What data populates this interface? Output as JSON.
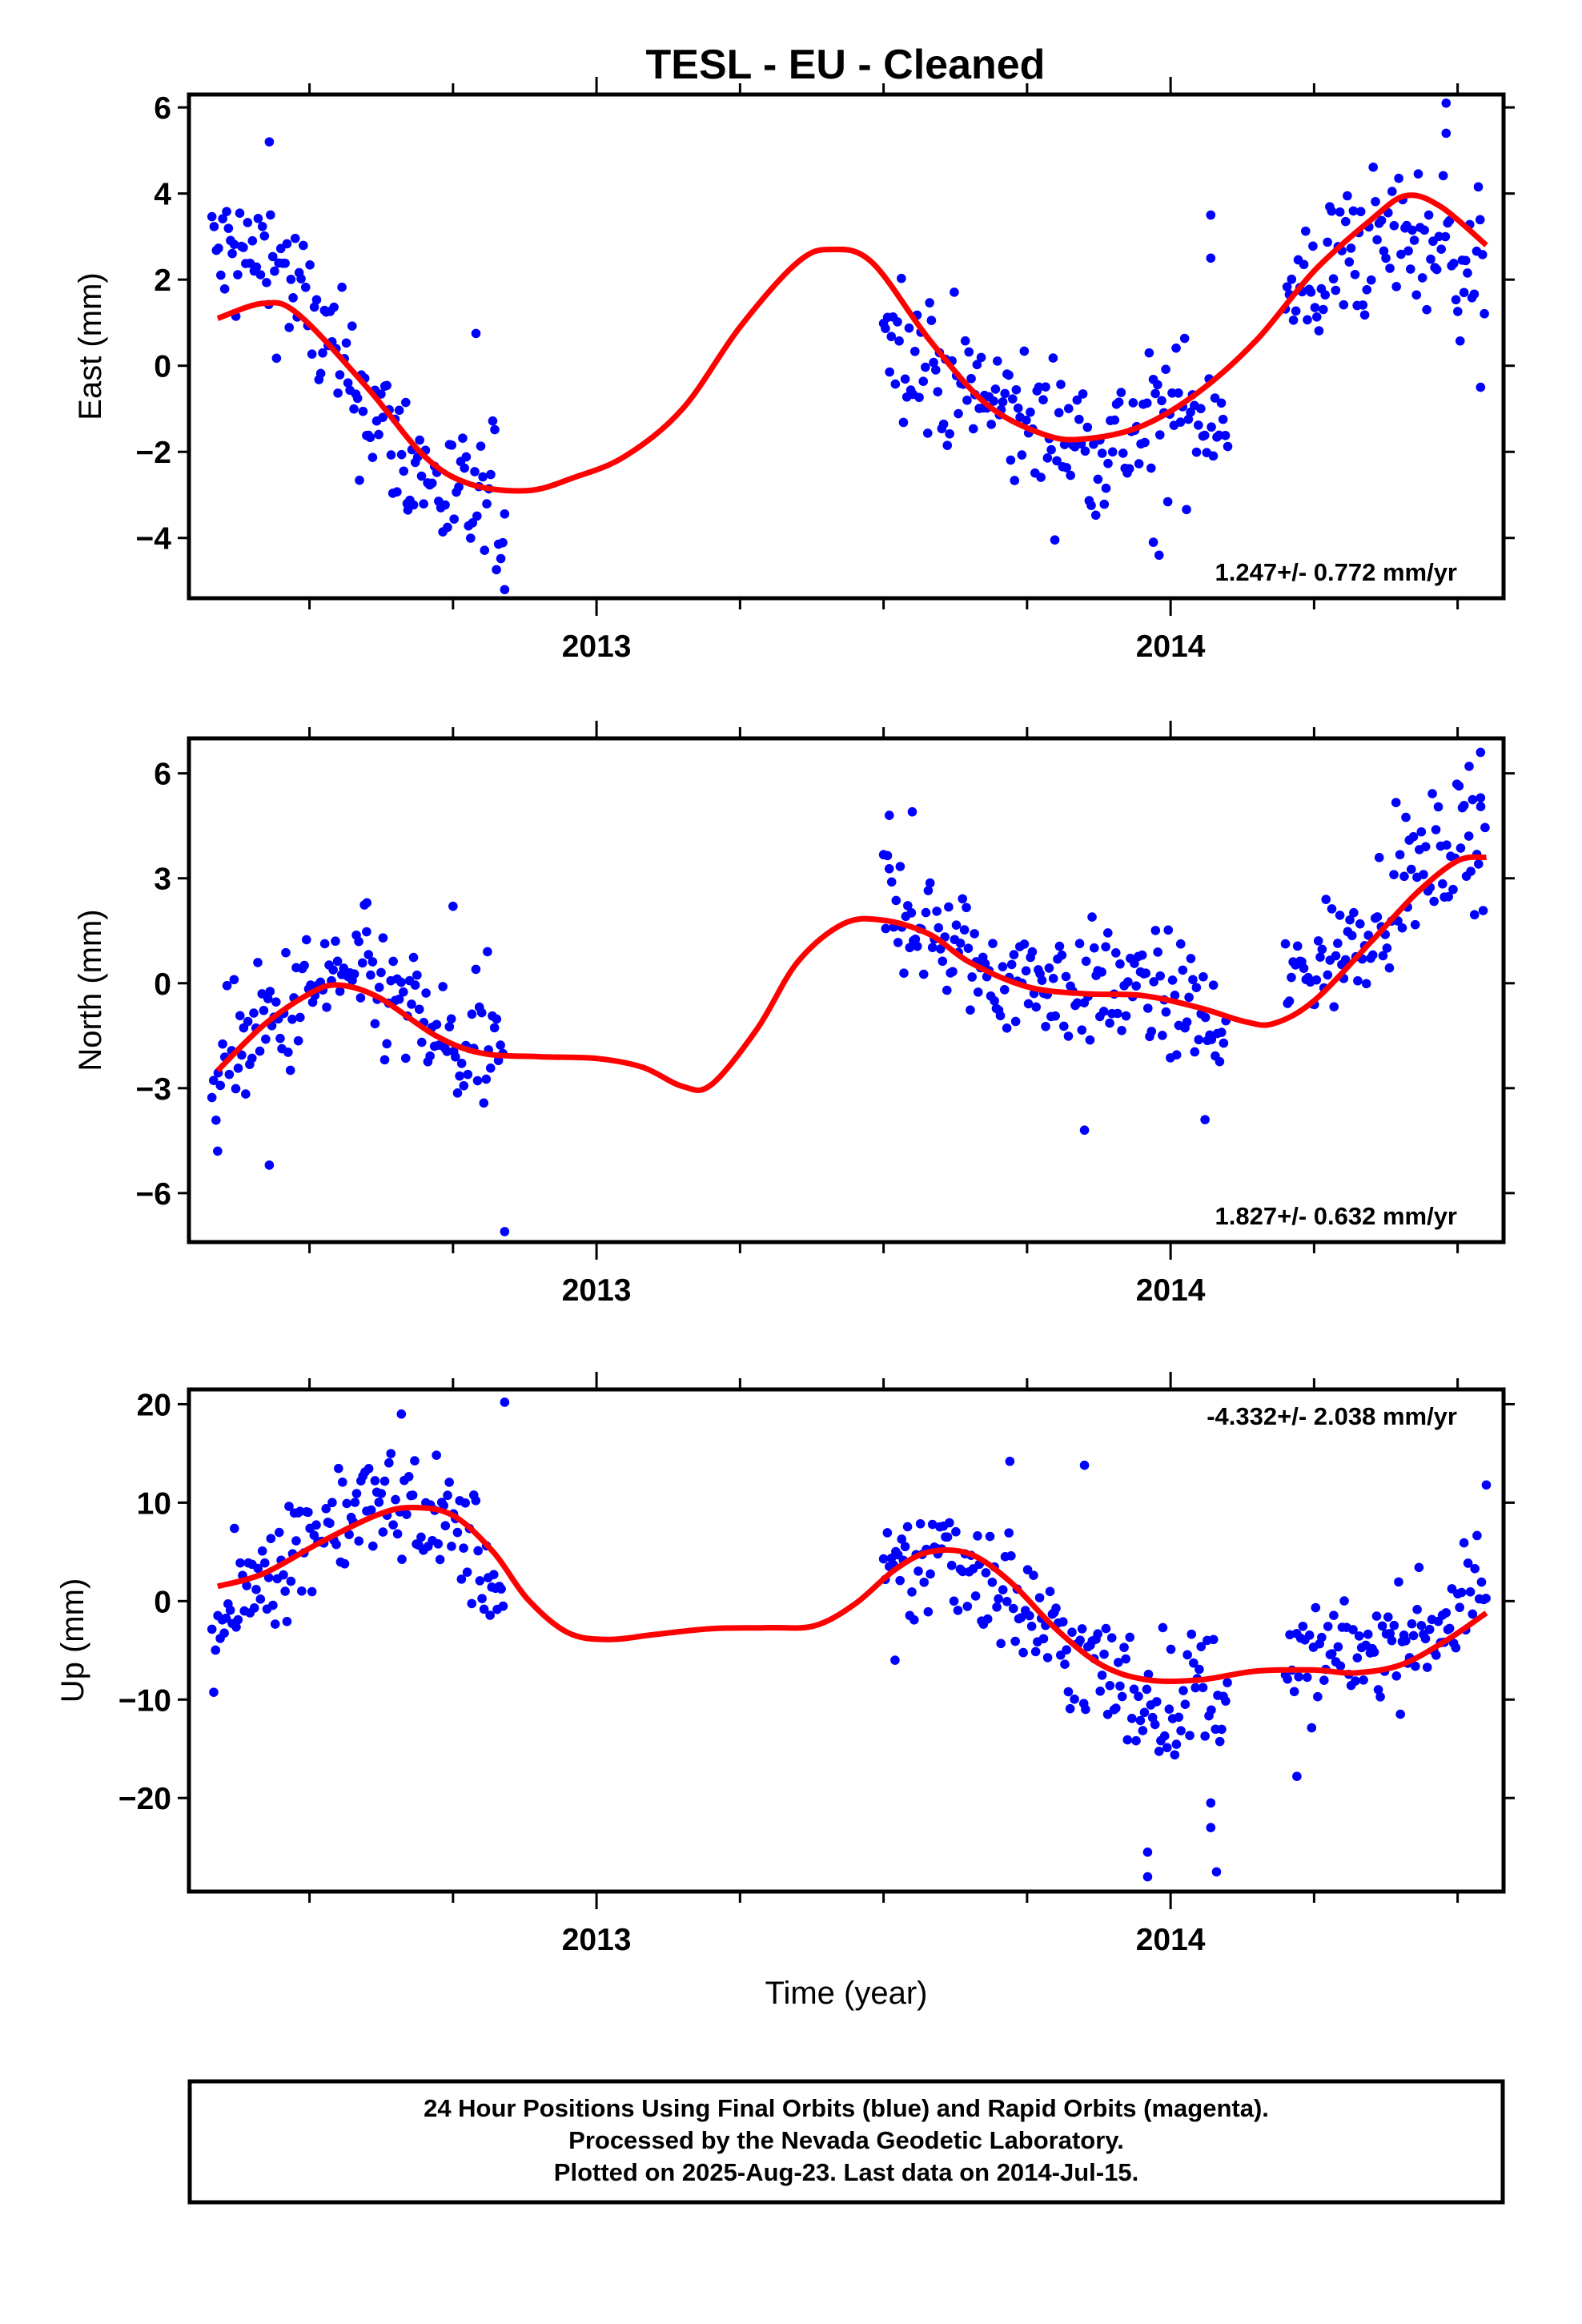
{
  "chart_data": [
    {
      "type": "scatter",
      "title": "TESL  - EU - Cleaned",
      "ylabel": "East (mm)",
      "xlabel": "",
      "xlim": [
        2012.29,
        2014.58
      ],
      "ylim": [
        -5.4,
        6.3
      ],
      "yticks": [
        -4,
        -2,
        0,
        2,
        4,
        6
      ],
      "xtick_labels": [
        {
          "x": 2013,
          "label": "2013"
        },
        {
          "x": 2014,
          "label": "2014"
        }
      ],
      "rate_label": "1.247+/- 0.772 mm/yr",
      "rate_position": "bottom-right",
      "series": [
        {
          "kind": "points",
          "color": "#0000ff",
          "segments": [
            {
              "x_start": 2012.33,
              "x_end": 2012.84,
              "trend": [
                [
                  2012.33,
                  2.6
                ],
                [
                  2012.45,
                  2.4
                ],
                [
                  2012.55,
                  0.0
                ],
                [
                  2012.65,
                  -1.8
                ],
                [
                  2012.75,
                  -3.2
                ],
                [
                  2012.84,
                  -3.3
                ]
              ],
              "spread": 1.0
            },
            {
              "x_start": 2013.5,
              "x_end": 2014.1,
              "trend": [
                [
                  2013.5,
                  1.0
                ],
                [
                  2013.6,
                  -0.2
                ],
                [
                  2013.7,
                  -1.0
                ],
                [
                  2013.8,
                  -1.6
                ],
                [
                  2013.9,
                  -1.8
                ],
                [
                  2014.0,
                  -1.2
                ],
                [
                  2014.1,
                  -0.9
                ]
              ],
              "spread": 1.0
            },
            {
              "x_start": 2014.2,
              "x_end": 2014.55,
              "trend": [
                [
                  2014.2,
                  1.2
                ],
                [
                  2014.3,
                  2.6
                ],
                [
                  2014.4,
                  3.0
                ],
                [
                  2014.48,
                  2.8
                ],
                [
                  2014.55,
                  2.0
                ]
              ],
              "spread": 1.0
            }
          ],
          "outliers": [
            [
              2012.43,
              5.2
            ],
            [
              2012.79,
              0.75
            ],
            [
              2013.97,
              -4.1
            ],
            [
              2013.98,
              -4.4
            ],
            [
              2014.07,
              3.5
            ],
            [
              2014.07,
              2.5
            ],
            [
              2014.48,
              6.1
            ],
            [
              2014.48,
              5.4
            ],
            [
              2014.54,
              -0.5
            ],
            [
              2012.84,
              -5.2
            ],
            [
              2012.67,
              -3.2
            ]
          ]
        },
        {
          "kind": "fit",
          "color": "#ff0000",
          "points": [
            [
              2012.34,
              1.1
            ],
            [
              2012.42,
              1.45
            ],
            [
              2012.48,
              1.2
            ],
            [
              2012.6,
              -0.5
            ],
            [
              2012.7,
              -2.1
            ],
            [
              2012.78,
              -2.75
            ],
            [
              2012.88,
              -2.9
            ],
            [
              2012.96,
              -2.6
            ],
            [
              2013.05,
              -2.1
            ],
            [
              2013.15,
              -1.0
            ],
            [
              2013.25,
              0.9
            ],
            [
              2013.35,
              2.4
            ],
            [
              2013.41,
              2.7
            ],
            [
              2013.48,
              2.4
            ],
            [
              2013.58,
              0.6
            ],
            [
              2013.68,
              -0.9
            ],
            [
              2013.78,
              -1.6
            ],
            [
              2013.85,
              -1.7
            ],
            [
              2013.95,
              -1.4
            ],
            [
              2014.05,
              -0.6
            ],
            [
              2014.15,
              0.6
            ],
            [
              2014.25,
              2.2
            ],
            [
              2014.35,
              3.4
            ],
            [
              2014.41,
              3.95
            ],
            [
              2014.47,
              3.7
            ],
            [
              2014.55,
              2.8
            ]
          ]
        }
      ]
    },
    {
      "type": "scatter",
      "title": "",
      "ylabel": "North (mm)",
      "xlabel": "",
      "xlim": [
        2012.29,
        2014.58
      ],
      "ylim": [
        -7.4,
        7.0
      ],
      "yticks": [
        -6,
        -3,
        0,
        3,
        6
      ],
      "xtick_labels": [
        {
          "x": 2013,
          "label": "2013"
        },
        {
          "x": 2014,
          "label": "2014"
        }
      ],
      "rate_label": "1.827+/- 0.632 mm/yr",
      "rate_position": "bottom-right",
      "series": [
        {
          "kind": "points",
          "color": "#0000ff",
          "segments": [
            {
              "x_start": 2012.33,
              "x_end": 2012.84,
              "trend": [
                [
                  2012.33,
                  -2.3
                ],
                [
                  2012.45,
                  -1.0
                ],
                [
                  2012.55,
                  0.3
                ],
                [
                  2012.65,
                  -0.5
                ],
                [
                  2012.75,
                  -2.0
                ],
                [
                  2012.84,
                  -2.3
                ]
              ],
              "spread": 1.1
            },
            {
              "x_start": 2013.5,
              "x_end": 2014.1,
              "trend": [
                [
                  2013.5,
                  2.5
                ],
                [
                  2013.58,
                  1.5
                ],
                [
                  2013.68,
                  0.3
                ],
                [
                  2013.8,
                  0.0
                ],
                [
                  2013.95,
                  -0.2
                ],
                [
                  2014.05,
                  -0.7
                ],
                [
                  2014.1,
                  -2.2
                ]
              ],
              "spread": 1.0
            },
            {
              "x_start": 2014.2,
              "x_end": 2014.55,
              "trend": [
                [
                  2014.2,
                  0.0
                ],
                [
                  2014.3,
                  1.0
                ],
                [
                  2014.4,
                  2.8
                ],
                [
                  2014.48,
                  3.8
                ],
                [
                  2014.55,
                  4.2
                ]
              ],
              "spread": 1.0
            }
          ],
          "outliers": [
            [
              2012.84,
              -7.1
            ],
            [
              2012.34,
              -4.8
            ],
            [
              2012.43,
              -5.2
            ],
            [
              2013.51,
              4.8
            ],
            [
              2013.55,
              4.9
            ],
            [
              2013.85,
              -4.2
            ],
            [
              2014.54,
              6.6
            ],
            [
              2014.54,
              5.3
            ],
            [
              2014.52,
              6.2
            ],
            [
              2014.06,
              -3.9
            ],
            [
              2012.6,
              2.3
            ],
            [
              2012.75,
              2.2
            ],
            [
              2012.81,
              0.9
            ]
          ]
        },
        {
          "kind": "fit",
          "color": "#ff0000",
          "points": [
            [
              2012.34,
              -2.5
            ],
            [
              2012.42,
              -1.2
            ],
            [
              2012.5,
              -0.3
            ],
            [
              2012.55,
              -0.05
            ],
            [
              2012.62,
              -0.4
            ],
            [
              2012.72,
              -1.5
            ],
            [
              2012.8,
              -2.0
            ],
            [
              2012.9,
              -2.1
            ],
            [
              2013.0,
              -2.15
            ],
            [
              2013.08,
              -2.4
            ],
            [
              2013.15,
              -2.95
            ],
            [
              2013.2,
              -2.9
            ],
            [
              2013.28,
              -1.3
            ],
            [
              2013.35,
              0.6
            ],
            [
              2013.43,
              1.7
            ],
            [
              2013.5,
              1.8
            ],
            [
              2013.58,
              1.4
            ],
            [
              2013.65,
              0.6
            ],
            [
              2013.75,
              -0.1
            ],
            [
              2013.85,
              -0.3
            ],
            [
              2013.95,
              -0.35
            ],
            [
              2014.05,
              -0.7
            ],
            [
              2014.13,
              -1.1
            ],
            [
              2014.18,
              -1.15
            ],
            [
              2014.25,
              -0.5
            ],
            [
              2014.35,
              1.2
            ],
            [
              2014.43,
              2.6
            ],
            [
              2014.5,
              3.5
            ],
            [
              2014.55,
              3.6
            ]
          ]
        }
      ]
    },
    {
      "type": "scatter",
      "title": "",
      "ylabel": "Up (mm)",
      "xlabel": "Time (year)",
      "xlim": [
        2012.29,
        2014.58
      ],
      "ylim": [
        -29.5,
        21.5
      ],
      "yticks": [
        -20,
        -10,
        0,
        10,
        20
      ],
      "xtick_labels": [
        {
          "x": 2013,
          "label": "2013"
        },
        {
          "x": 2014,
          "label": "2014"
        }
      ],
      "rate_label": "-4.332+/- 2.038 mm/yr",
      "rate_position": "top-right",
      "series": [
        {
          "kind": "points",
          "color": "#0000ff",
          "segments": [
            {
              "x_start": 2012.33,
              "x_end": 2012.84,
              "trend": [
                [
                  2012.33,
                  -4.0
                ],
                [
                  2012.42,
                  3.0
                ],
                [
                  2012.55,
                  9.0
                ],
                [
                  2012.68,
                  10.0
                ],
                [
                  2012.78,
                  6.0
                ],
                [
                  2012.84,
                  -1.0
                ]
              ],
              "spread": 3.5
            },
            {
              "x_start": 2013.5,
              "x_end": 2014.1,
              "trend": [
                [
                  2013.5,
                  1.0
                ],
                [
                  2013.6,
                  5.5
                ],
                [
                  2013.7,
                  2.0
                ],
                [
                  2013.8,
                  -4.0
                ],
                [
                  2013.92,
                  -9.0
                ],
                [
                  2014.02,
                  -10.0
                ],
                [
                  2014.1,
                  -8.0
                ]
              ],
              "spread": 3.8
            },
            {
              "x_start": 2014.2,
              "x_end": 2014.55,
              "trend": [
                [
                  2014.2,
                  -7.0
                ],
                [
                  2014.3,
                  -5.5
                ],
                [
                  2014.4,
                  -4.0
                ],
                [
                  2014.48,
                  -2.0
                ],
                [
                  2014.55,
                  2.0
                ]
              ],
              "spread": 3.2
            }
          ],
          "outliers": [
            [
              2012.84,
              20.2
            ],
            [
              2012.66,
              19.0
            ],
            [
              2013.96,
              -25.5
            ],
            [
              2013.96,
              -28.0
            ],
            [
              2014.08,
              -27.5
            ],
            [
              2014.07,
              -20.5
            ],
            [
              2014.07,
              -23.0
            ],
            [
              2013.52,
              -6.0
            ],
            [
              2014.22,
              -17.8
            ],
            [
              2013.72,
              14.2
            ],
            [
              2013.85,
              13.8
            ],
            [
              2014.55,
              11.8
            ]
          ]
        },
        {
          "kind": "fit",
          "color": "#ff0000",
          "points": [
            [
              2012.34,
              1.5
            ],
            [
              2012.42,
              2.8
            ],
            [
              2012.52,
              6.0
            ],
            [
              2012.62,
              8.8
            ],
            [
              2012.68,
              9.5
            ],
            [
              2012.75,
              8.7
            ],
            [
              2012.82,
              5.0
            ],
            [
              2012.88,
              0.2
            ],
            [
              2012.95,
              -3.2
            ],
            [
              2013.02,
              -3.9
            ],
            [
              2013.1,
              -3.4
            ],
            [
              2013.2,
              -2.8
            ],
            [
              2013.3,
              -2.7
            ],
            [
              2013.38,
              -2.5
            ],
            [
              2013.45,
              -0.3
            ],
            [
              2013.52,
              3.2
            ],
            [
              2013.58,
              5.0
            ],
            [
              2013.65,
              4.8
            ],
            [
              2013.72,
              2.0
            ],
            [
              2013.8,
              -2.8
            ],
            [
              2013.88,
              -6.5
            ],
            [
              2013.96,
              -8.0
            ],
            [
              2014.05,
              -8.0
            ],
            [
              2014.15,
              -7.1
            ],
            [
              2014.25,
              -7.0
            ],
            [
              2014.32,
              -7.3
            ],
            [
              2014.4,
              -6.5
            ],
            [
              2014.48,
              -4.0
            ],
            [
              2014.55,
              -1.2
            ]
          ]
        }
      ]
    }
  ],
  "footer": {
    "line1": "24 Hour Positions Using Final Orbits (blue) and Rapid Orbits (magenta).",
    "line2": "Processed by the Nevada Geodetic Laboratory.",
    "line3": "Plotted on 2025-Aug-23. Last data on 2014-Jul-15."
  }
}
